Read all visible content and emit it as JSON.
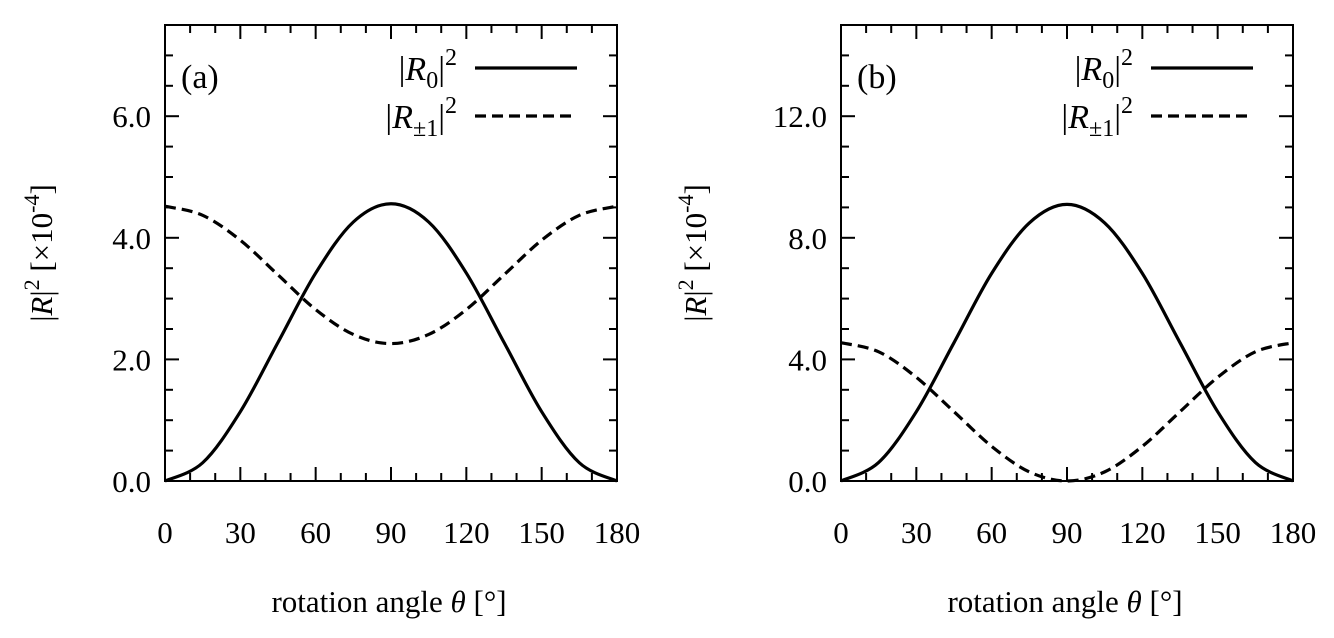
{
  "chart_data": [
    {
      "type": "line",
      "panel_label": "(a)",
      "xlabel": "rotation angle θ [°]",
      "ylabel": "|R|² [×10⁻⁴]",
      "xlim": [
        0,
        180
      ],
      "ylim": [
        0,
        7.5
      ],
      "xticks": [
        0,
        30,
        60,
        90,
        120,
        150,
        180
      ],
      "xtick_labels": [
        "0",
        "30",
        "60",
        "90",
        "120",
        "150",
        "180"
      ],
      "yticks": [
        0,
        2,
        4,
        6
      ],
      "ytick_labels": [
        "0.0",
        "2.0",
        "4.0",
        "6.0"
      ],
      "grid": false,
      "legend_position": "top-right",
      "series": [
        {
          "name": "|R0|²",
          "style": "solid",
          "x": [
            0,
            15,
            30,
            45,
            60,
            75,
            90,
            105,
            120,
            135,
            150,
            165,
            180
          ],
          "y": [
            0.0,
            0.3,
            1.14,
            2.28,
            3.42,
            4.26,
            4.56,
            4.26,
            3.42,
            2.28,
            1.14,
            0.3,
            0.0
          ]
        },
        {
          "name": "|R±1|²",
          "style": "dashed",
          "x": [
            0,
            15,
            30,
            45,
            60,
            75,
            90,
            105,
            120,
            135,
            150,
            165,
            180
          ],
          "y": [
            4.52,
            4.37,
            3.96,
            3.39,
            2.82,
            2.41,
            2.26,
            2.41,
            2.82,
            3.39,
            3.96,
            4.37,
            4.52
          ]
        }
      ]
    },
    {
      "type": "line",
      "panel_label": "(b)",
      "xlabel": "rotation angle θ [°]",
      "ylabel": "|R|² [×10⁻⁴]",
      "xlim": [
        0,
        180
      ],
      "ylim": [
        0,
        15
      ],
      "xticks": [
        0,
        30,
        60,
        90,
        120,
        150,
        180
      ],
      "xtick_labels": [
        "0",
        "30",
        "60",
        "90",
        "120",
        "150",
        "180"
      ],
      "yticks": [
        0,
        4,
        8,
        12
      ],
      "ytick_labels": [
        "0.0",
        "4.0",
        "8.0",
        "12.0"
      ],
      "grid": false,
      "legend_position": "top-right",
      "series": [
        {
          "name": "|R0|²",
          "style": "solid",
          "x": [
            0,
            15,
            30,
            45,
            60,
            75,
            90,
            105,
            120,
            135,
            150,
            165,
            180
          ],
          "y": [
            0.0,
            0.61,
            2.28,
            4.55,
            6.83,
            8.49,
            9.1,
            8.49,
            6.83,
            4.55,
            2.28,
            0.61,
            0.0
          ]
        },
        {
          "name": "|R±1|²",
          "style": "dashed",
          "x": [
            0,
            15,
            30,
            45,
            60,
            75,
            90,
            105,
            120,
            135,
            150,
            165,
            180
          ],
          "y": [
            4.55,
            4.25,
            3.41,
            2.28,
            1.14,
            0.3,
            0.0,
            0.3,
            1.14,
            2.28,
            3.41,
            4.25,
            4.55
          ]
        }
      ]
    }
  ]
}
